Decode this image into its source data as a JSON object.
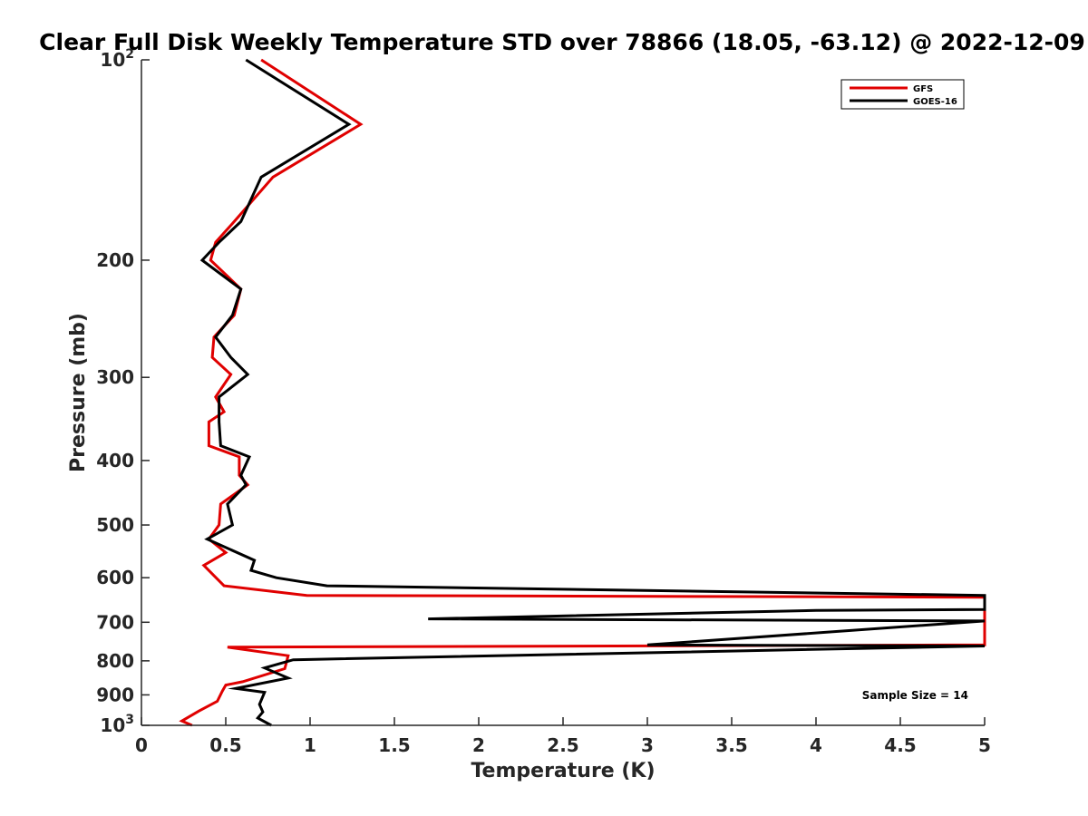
{
  "chart_data": {
    "type": "line",
    "title": "Clear Full Disk Weekly Temperature STD over 78866 (18.05, -63.12) @ 2022-12-09",
    "xlabel": "Temperature (K)",
    "ylabel": "Pressure (mb)",
    "xlim": [
      0,
      5
    ],
    "ylim": [
      100,
      1000
    ],
    "y_scale": "log",
    "y_reversed": true,
    "grid": false,
    "legend_position": "top-right",
    "x_ticks": [
      0,
      0.5,
      1,
      1.5,
      2,
      2.5,
      3,
      3.5,
      4,
      4.5,
      5
    ],
    "x_tick_labels": [
      "0",
      "0.5",
      "1",
      "1.5",
      "2",
      "2.5",
      "3",
      "3.5",
      "4",
      "4.5",
      "5"
    ],
    "y_ticks": [
      100,
      200,
      300,
      400,
      500,
      600,
      700,
      800,
      900,
      1000
    ],
    "y_tick_labels": [
      {
        "base": "10",
        "exp": "2"
      },
      {
        "base": "200",
        "exp": ""
      },
      {
        "base": "300",
        "exp": ""
      },
      {
        "base": "400",
        "exp": ""
      },
      {
        "base": "500",
        "exp": ""
      },
      {
        "base": "600",
        "exp": ""
      },
      {
        "base": "700",
        "exp": ""
      },
      {
        "base": "800",
        "exp": ""
      },
      {
        "base": "900",
        "exp": ""
      },
      {
        "base": "10",
        "exp": "3"
      }
    ],
    "annotation": "Sample Size = 14",
    "series": [
      {
        "name": "GFS",
        "color": "#e00000",
        "points": [
          [
            0.71,
            100
          ],
          [
            1.3,
            125
          ],
          [
            0.78,
            150
          ],
          [
            0.55,
            175
          ],
          [
            0.44,
            188
          ],
          [
            0.41,
            200
          ],
          [
            0.59,
            221
          ],
          [
            0.55,
            242
          ],
          [
            0.43,
            261
          ],
          [
            0.42,
            280
          ],
          [
            0.53,
            297
          ],
          [
            0.44,
            321
          ],
          [
            0.49,
            338
          ],
          [
            0.4,
            350
          ],
          [
            0.4,
            380
          ],
          [
            0.58,
            395
          ],
          [
            0.58,
            421
          ],
          [
            0.63,
            435
          ],
          [
            0.47,
            465
          ],
          [
            0.46,
            500
          ],
          [
            0.4,
            525
          ],
          [
            0.5,
            550
          ],
          [
            0.37,
            575
          ],
          [
            0.49,
            617
          ],
          [
            0.98,
            638
          ],
          [
            5.0,
            642
          ],
          [
            5.0,
            757
          ],
          [
            0.51,
            763
          ],
          [
            0.87,
            786
          ],
          [
            0.85,
            822
          ],
          [
            0.6,
            860
          ],
          [
            0.5,
            870
          ],
          [
            0.48,
            888
          ],
          [
            0.45,
            920
          ],
          [
            0.34,
            952
          ],
          [
            0.24,
            985
          ],
          [
            0.3,
            1000
          ]
        ]
      },
      {
        "name": "GOES-16",
        "color": "#000000",
        "points": [
          [
            0.62,
            100
          ],
          [
            1.23,
            125
          ],
          [
            0.71,
            150
          ],
          [
            0.59,
            175
          ],
          [
            0.46,
            188
          ],
          [
            0.36,
            200
          ],
          [
            0.59,
            221
          ],
          [
            0.54,
            242
          ],
          [
            0.44,
            261
          ],
          [
            0.53,
            280
          ],
          [
            0.63,
            297
          ],
          [
            0.46,
            321
          ],
          [
            0.46,
            350
          ],
          [
            0.47,
            380
          ],
          [
            0.64,
            395
          ],
          [
            0.59,
            421
          ],
          [
            0.62,
            435
          ],
          [
            0.51,
            465
          ],
          [
            0.54,
            500
          ],
          [
            0.39,
            525
          ],
          [
            0.67,
            565
          ],
          [
            0.65,
            585
          ],
          [
            0.8,
            600
          ],
          [
            1.1,
            617
          ],
          [
            5.0,
            638
          ],
          [
            5.0,
            670
          ],
          [
            4.0,
            672
          ],
          [
            1.7,
            692
          ],
          [
            5.0,
            697
          ],
          [
            3.0,
            757
          ],
          [
            5.0,
            760
          ],
          [
            0.9,
            797
          ],
          [
            0.73,
            820
          ],
          [
            0.87,
            849
          ],
          [
            0.56,
            880
          ],
          [
            0.73,
            892
          ],
          [
            0.7,
            930
          ],
          [
            0.72,
            955
          ],
          [
            0.69,
            975
          ],
          [
            0.77,
            1000
          ]
        ]
      }
    ]
  }
}
